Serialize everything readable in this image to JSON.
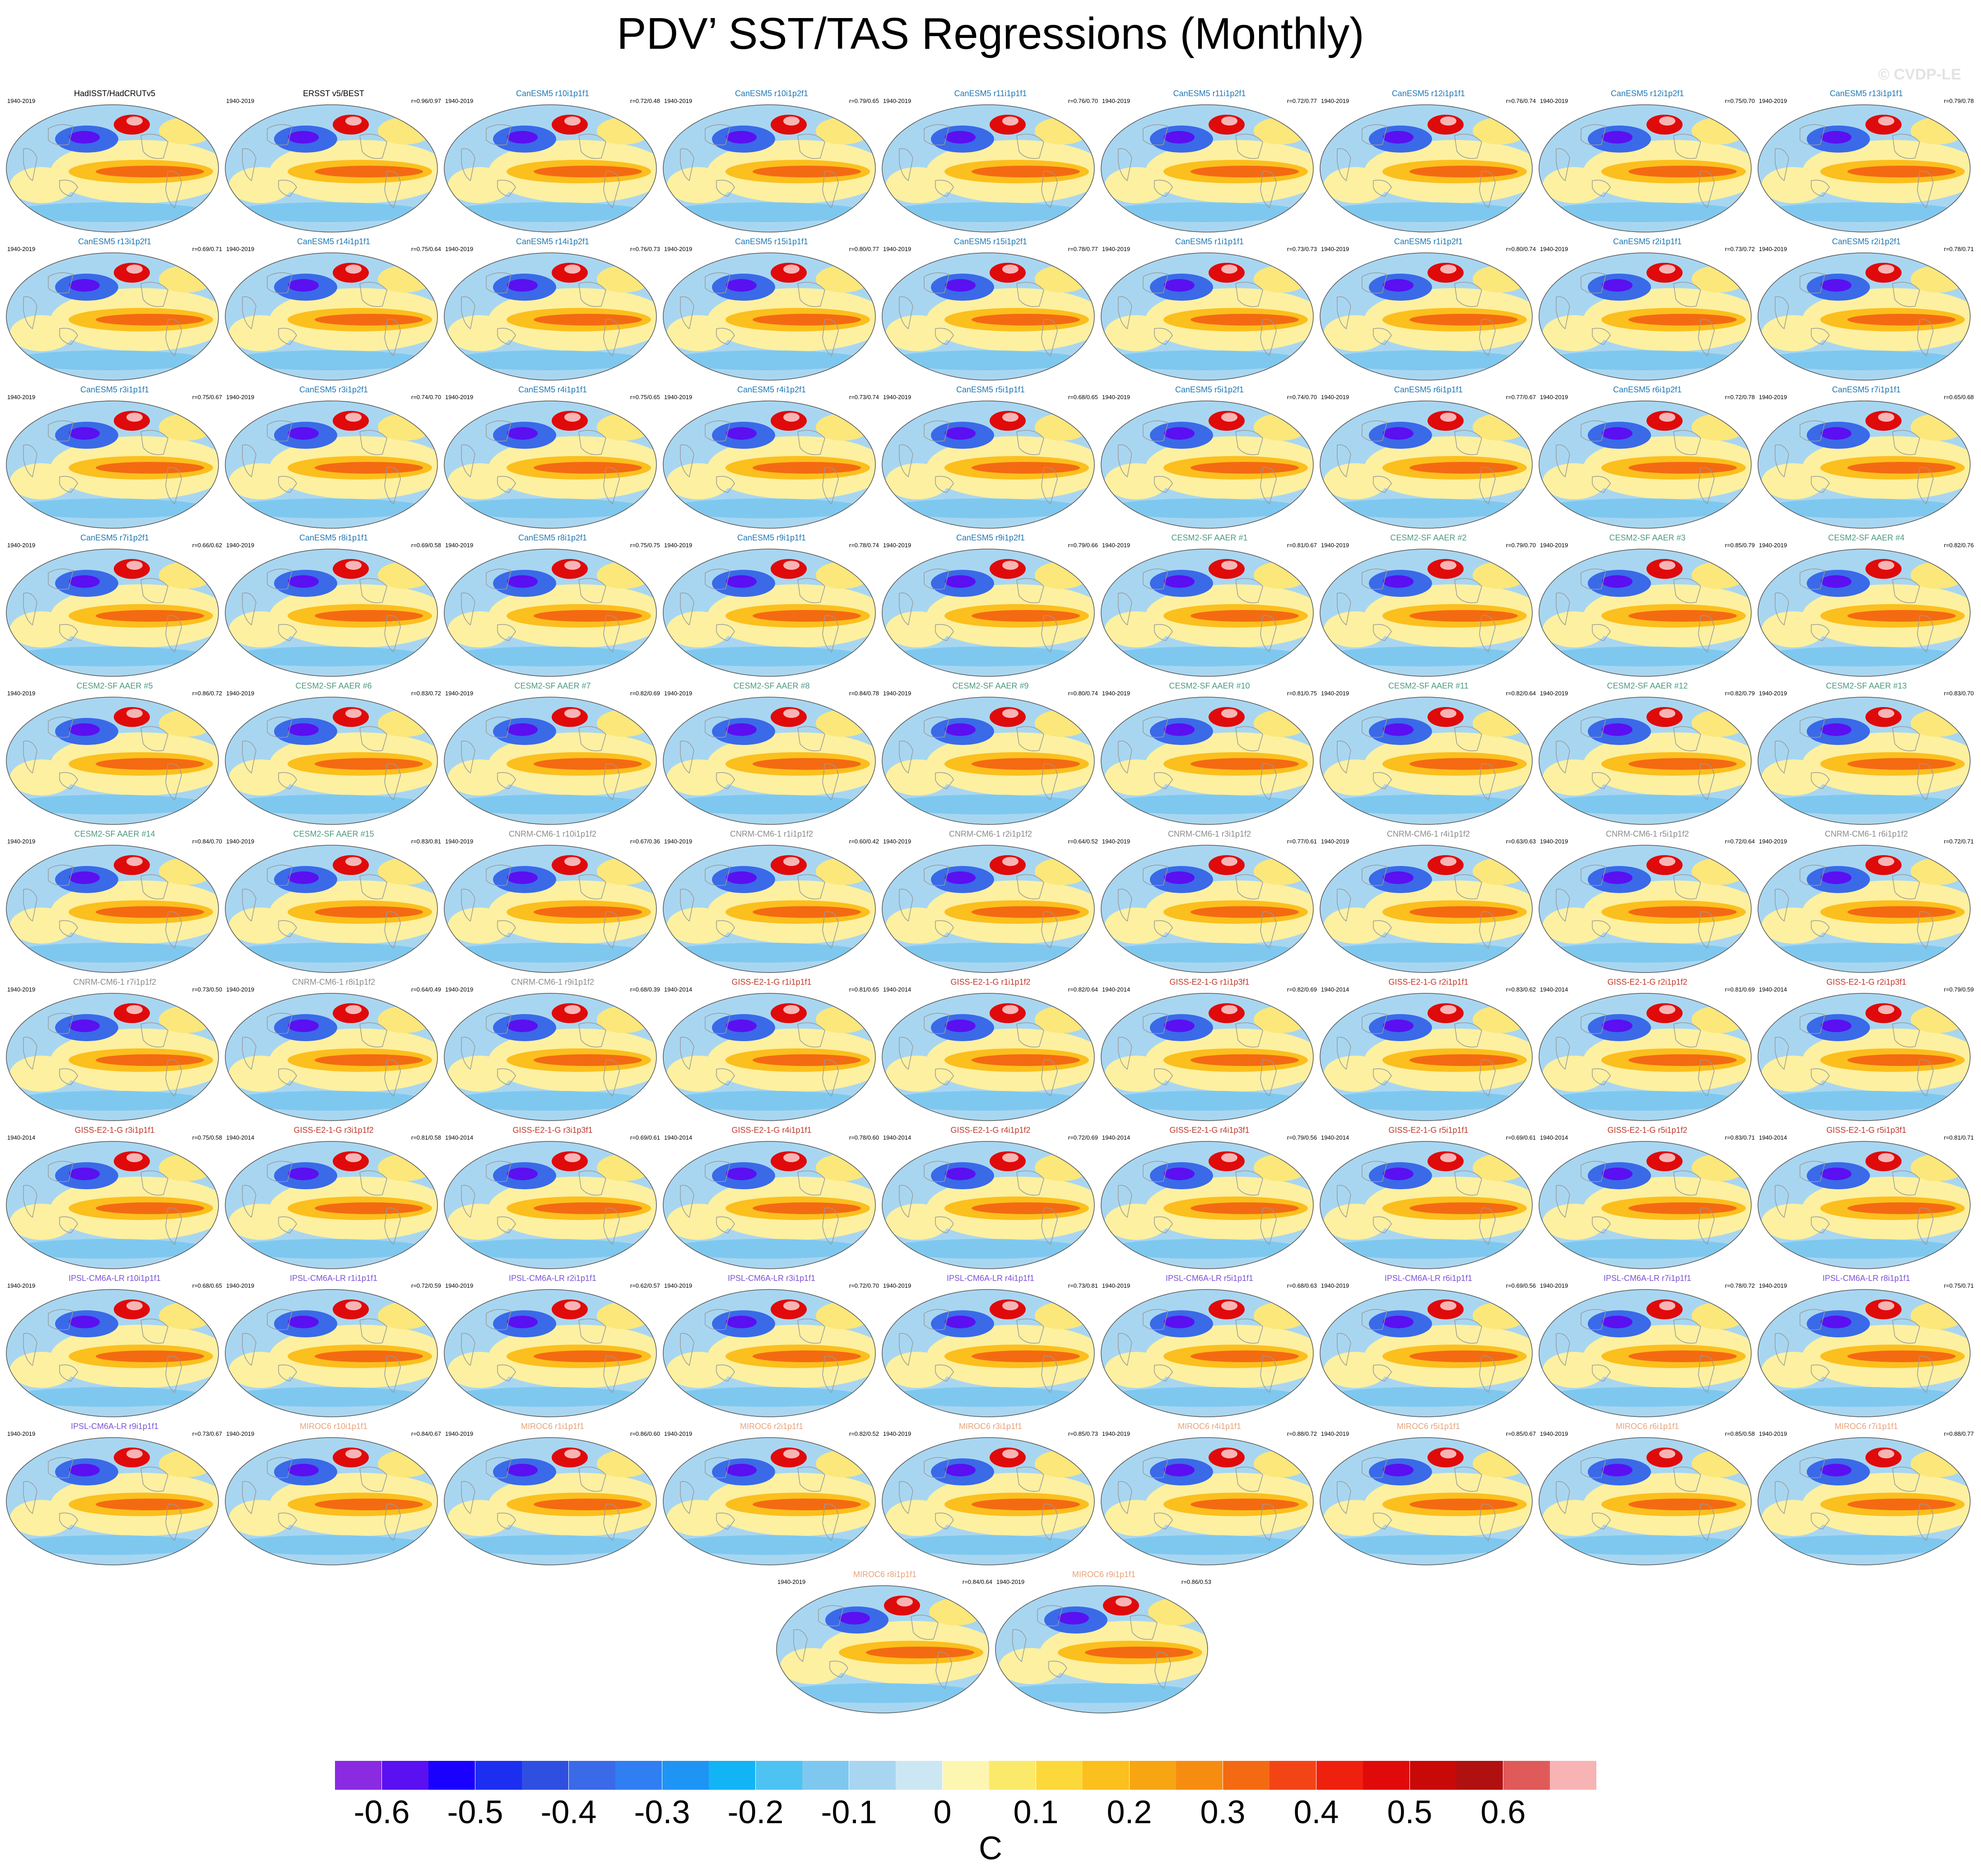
{
  "title": "PDV’ SST/TAS Regressions (Monthly)",
  "watermark": "© CVDP-LE",
  "chart_data": {
    "type": "heatmap",
    "description_units": "C",
    "colorbar": {
      "units": "C",
      "tick_labels": [
        "-0.6",
        "-0.5",
        "-0.4",
        "-0.3",
        "-0.2",
        "-0.1",
        "0",
        "0.1",
        "0.2",
        "0.3",
        "0.4",
        "0.5",
        "0.6"
      ],
      "tick_values": [
        -0.6,
        -0.5,
        -0.4,
        -0.3,
        -0.2,
        -0.1,
        0,
        0.1,
        0.2,
        0.3,
        0.4,
        0.5,
        0.6
      ],
      "colors": [
        "#8a2be2",
        "#5a10f0",
        "#1a00ff",
        "#1c2ef0",
        "#2f4fe0",
        "#3a6ae8",
        "#2f7ff2",
        "#1e95f5",
        "#12b4f5",
        "#4cc3f2",
        "#7ec8ef",
        "#a8d6f1",
        "#cce7f4",
        "#fdf6b0",
        "#fbe96a",
        "#fcd83a",
        "#fbbf1e",
        "#f8a514",
        "#f78d10",
        "#f46a12",
        "#f34415",
        "#f0200f",
        "#e00a0a",
        "#c90808",
        "#b01010",
        "#e05a5a",
        "#f8b4b4"
      ]
    },
    "panels": [
      {
        "title": "HadISST/HadCRUTv5",
        "years": "1940-2019",
        "corr": "",
        "group": "obs"
      },
      {
        "title": "ERSST v5/BEST",
        "years": "1940-2019",
        "corr": "r=0.96/0.97",
        "group": "obs"
      },
      {
        "title": "CanESM5 r10i1p1f1",
        "years": "1940-2019",
        "corr": "r=0.72/0.48",
        "group": "canesm5"
      },
      {
        "title": "CanESM5 r10i1p2f1",
        "years": "1940-2019",
        "corr": "r=0.79/0.65",
        "group": "canesm5"
      },
      {
        "title": "CanESM5 r11i1p1f1",
        "years": "1940-2019",
        "corr": "r=0.76/0.70",
        "group": "canesm5"
      },
      {
        "title": "CanESM5 r11i1p2f1",
        "years": "1940-2019",
        "corr": "r=0.72/0.77",
        "group": "canesm5"
      },
      {
        "title": "CanESM5 r12i1p1f1",
        "years": "1940-2019",
        "corr": "r=0.76/0.74",
        "group": "canesm5"
      },
      {
        "title": "CanESM5 r12i1p2f1",
        "years": "1940-2019",
        "corr": "r=0.75/0.70",
        "group": "canesm5"
      },
      {
        "title": "CanESM5 r13i1p1f1",
        "years": "1940-2019",
        "corr": "r=0.79/0.78",
        "group": "canesm5"
      },
      {
        "title": "CanESM5 r13i1p2f1",
        "years": "1940-2019",
        "corr": "r=0.69/0.71",
        "group": "canesm5"
      },
      {
        "title": "CanESM5 r14i1p1f1",
        "years": "1940-2019",
        "corr": "r=0.75/0.64",
        "group": "canesm5"
      },
      {
        "title": "CanESM5 r14i1p2f1",
        "years": "1940-2019",
        "corr": "r=0.76/0.73",
        "group": "canesm5"
      },
      {
        "title": "CanESM5 r15i1p1f1",
        "years": "1940-2019",
        "corr": "r=0.80/0.77",
        "group": "canesm5"
      },
      {
        "title": "CanESM5 r15i1p2f1",
        "years": "1940-2019",
        "corr": "r=0.78/0.77",
        "group": "canesm5"
      },
      {
        "title": "CanESM5 r1i1p1f1",
        "years": "1940-2019",
        "corr": "r=0.73/0.73",
        "group": "canesm5"
      },
      {
        "title": "CanESM5 r1i1p2f1",
        "years": "1940-2019",
        "corr": "r=0.80/0.74",
        "group": "canesm5"
      },
      {
        "title": "CanESM5 r2i1p1f1",
        "years": "1940-2019",
        "corr": "r=0.73/0.72",
        "group": "canesm5"
      },
      {
        "title": "CanESM5 r2i1p2f1",
        "years": "1940-2019",
        "corr": "r=0.78/0.71",
        "group": "canesm5"
      },
      {
        "title": "CanESM5 r3i1p1f1",
        "years": "1940-2019",
        "corr": "r=0.75/0.67",
        "group": "canesm5"
      },
      {
        "title": "CanESM5 r3i1p2f1",
        "years": "1940-2019",
        "corr": "r=0.74/0.70",
        "group": "canesm5"
      },
      {
        "title": "CanESM5 r4i1p1f1",
        "years": "1940-2019",
        "corr": "r=0.75/0.65",
        "group": "canesm5"
      },
      {
        "title": "CanESM5 r4i1p2f1",
        "years": "1940-2019",
        "corr": "r=0.73/0.74",
        "group": "canesm5"
      },
      {
        "title": "CanESM5 r5i1p1f1",
        "years": "1940-2019",
        "corr": "r=0.68/0.65",
        "group": "canesm5"
      },
      {
        "title": "CanESM5 r5i1p2f1",
        "years": "1940-2019",
        "corr": "r=0.74/0.70",
        "group": "canesm5"
      },
      {
        "title": "CanESM5 r6i1p1f1",
        "years": "1940-2019",
        "corr": "r=0.77/0.67",
        "group": "canesm5"
      },
      {
        "title": "CanESM5 r6i1p2f1",
        "years": "1940-2019",
        "corr": "r=0.72/0.78",
        "group": "canesm5"
      },
      {
        "title": "CanESM5 r7i1p1f1",
        "years": "1940-2019",
        "corr": "r=0.65/0.68",
        "group": "canesm5"
      },
      {
        "title": "CanESM5 r7i1p2f1",
        "years": "1940-2019",
        "corr": "r=0.66/0.62",
        "group": "canesm5"
      },
      {
        "title": "CanESM5 r8i1p1f1",
        "years": "1940-2019",
        "corr": "r=0.69/0.58",
        "group": "canesm5"
      },
      {
        "title": "CanESM5 r8i1p2f1",
        "years": "1940-2019",
        "corr": "r=0.75/0.75",
        "group": "canesm5"
      },
      {
        "title": "CanESM5 r9i1p1f1",
        "years": "1940-2019",
        "corr": "r=0.78/0.74",
        "group": "canesm5"
      },
      {
        "title": "CanESM5 r9i1p2f1",
        "years": "1940-2019",
        "corr": "r=0.79/0.66",
        "group": "canesm5"
      },
      {
        "title": "CESM2-SF AAER #1",
        "years": "1940-2019",
        "corr": "r=0.81/0.67",
        "group": "cesm2"
      },
      {
        "title": "CESM2-SF AAER #2",
        "years": "1940-2019",
        "corr": "r=0.79/0.70",
        "group": "cesm2"
      },
      {
        "title": "CESM2-SF AAER #3",
        "years": "1940-2019",
        "corr": "r=0.85/0.79",
        "group": "cesm2"
      },
      {
        "title": "CESM2-SF AAER #4",
        "years": "1940-2019",
        "corr": "r=0.82/0.76",
        "group": "cesm2"
      },
      {
        "title": "CESM2-SF AAER #5",
        "years": "1940-2019",
        "corr": "r=0.86/0.72",
        "group": "cesm2"
      },
      {
        "title": "CESM2-SF AAER #6",
        "years": "1940-2019",
        "corr": "r=0.83/0.72",
        "group": "cesm2"
      },
      {
        "title": "CESM2-SF AAER #7",
        "years": "1940-2019",
        "corr": "r=0.82/0.69",
        "group": "cesm2"
      },
      {
        "title": "CESM2-SF AAER #8",
        "years": "1940-2019",
        "corr": "r=0.84/0.78",
        "group": "cesm2"
      },
      {
        "title": "CESM2-SF AAER #9",
        "years": "1940-2019",
        "corr": "r=0.80/0.74",
        "group": "cesm2"
      },
      {
        "title": "CESM2-SF AAER #10",
        "years": "1940-2019",
        "corr": "r=0.81/0.75",
        "group": "cesm2"
      },
      {
        "title": "CESM2-SF AAER #11",
        "years": "1940-2019",
        "corr": "r=0.82/0.64",
        "group": "cesm2"
      },
      {
        "title": "CESM2-SF AAER #12",
        "years": "1940-2019",
        "corr": "r=0.82/0.79",
        "group": "cesm2"
      },
      {
        "title": "CESM2-SF AAER #13",
        "years": "1940-2019",
        "corr": "r=0.83/0.70",
        "group": "cesm2"
      },
      {
        "title": "CESM2-SF AAER #14",
        "years": "1940-2019",
        "corr": "r=0.84/0.70",
        "group": "cesm2"
      },
      {
        "title": "CESM2-SF AAER #15",
        "years": "1940-2019",
        "corr": "r=0.83/0.81",
        "group": "cesm2"
      },
      {
        "title": "CNRM-CM6-1 r10i1p1f2",
        "years": "1940-2019",
        "corr": "r=0.67/0.36",
        "group": "cnrm"
      },
      {
        "title": "CNRM-CM6-1 r1i1p1f2",
        "years": "1940-2019",
        "corr": "r=0.60/0.42",
        "group": "cnrm"
      },
      {
        "title": "CNRM-CM6-1 r2i1p1f2",
        "years": "1940-2019",
        "corr": "r=0.64/0.52",
        "group": "cnrm"
      },
      {
        "title": "CNRM-CM6-1 r3i1p1f2",
        "years": "1940-2019",
        "corr": "r=0.77/0.61",
        "group": "cnrm"
      },
      {
        "title": "CNRM-CM6-1 r4i1p1f2",
        "years": "1940-2019",
        "corr": "r=0.63/0.63",
        "group": "cnrm"
      },
      {
        "title": "CNRM-CM6-1 r5i1p1f2",
        "years": "1940-2019",
        "corr": "r=0.72/0.64",
        "group": "cnrm"
      },
      {
        "title": "CNRM-CM6-1 r6i1p1f2",
        "years": "1940-2019",
        "corr": "r=0.72/0.71",
        "group": "cnrm"
      },
      {
        "title": "CNRM-CM6-1 r7i1p1f2",
        "years": "1940-2019",
        "corr": "r=0.73/0.50",
        "group": "cnrm"
      },
      {
        "title": "CNRM-CM6-1 r8i1p1f2",
        "years": "1940-2019",
        "corr": "r=0.64/0.49",
        "group": "cnrm"
      },
      {
        "title": "CNRM-CM6-1 r9i1p1f2",
        "years": "1940-2019",
        "corr": "r=0.68/0.39",
        "group": "cnrm"
      },
      {
        "title": "GISS-E2-1-G r1i1p1f1",
        "years": "1940-2014",
        "corr": "r=0.81/0.65",
        "group": "giss"
      },
      {
        "title": "GISS-E2-1-G r1i1p1f2",
        "years": "1940-2014",
        "corr": "r=0.82/0.64",
        "group": "giss"
      },
      {
        "title": "GISS-E2-1-G r1i1p3f1",
        "years": "1940-2014",
        "corr": "r=0.82/0.69",
        "group": "giss"
      },
      {
        "title": "GISS-E2-1-G r2i1p1f1",
        "years": "1940-2014",
        "corr": "r=0.83/0.62",
        "group": "giss"
      },
      {
        "title": "GISS-E2-1-G r2i1p1f2",
        "years": "1940-2014",
        "corr": "r=0.81/0.69",
        "group": "giss"
      },
      {
        "title": "GISS-E2-1-G r2i1p3f1",
        "years": "1940-2014",
        "corr": "r=0.79/0.59",
        "group": "giss"
      },
      {
        "title": "GISS-E2-1-G r3i1p1f1",
        "years": "1940-2014",
        "corr": "r=0.75/0.58",
        "group": "giss"
      },
      {
        "title": "GISS-E2-1-G r3i1p1f2",
        "years": "1940-2014",
        "corr": "r=0.81/0.58",
        "group": "giss"
      },
      {
        "title": "GISS-E2-1-G r3i1p3f1",
        "years": "1940-2014",
        "corr": "r=0.69/0.61",
        "group": "giss"
      },
      {
        "title": "GISS-E2-1-G r4i1p1f1",
        "years": "1940-2014",
        "corr": "r=0.78/0.60",
        "group": "giss"
      },
      {
        "title": "GISS-E2-1-G r4i1p1f2",
        "years": "1940-2014",
        "corr": "r=0.72/0.69",
        "group": "giss"
      },
      {
        "title": "GISS-E2-1-G r4i1p3f1",
        "years": "1940-2014",
        "corr": "r=0.79/0.56",
        "group": "giss"
      },
      {
        "title": "GISS-E2-1-G r5i1p1f1",
        "years": "1940-2014",
        "corr": "r=0.69/0.61",
        "group": "giss"
      },
      {
        "title": "GISS-E2-1-G r5i1p1f2",
        "years": "1940-2014",
        "corr": "r=0.83/0.71",
        "group": "giss"
      },
      {
        "title": "GISS-E2-1-G r5i1p3f1",
        "years": "1940-2014",
        "corr": "r=0.81/0.71",
        "group": "giss"
      },
      {
        "title": "IPSL-CM6A-LR r10i1p1f1",
        "years": "1940-2019",
        "corr": "r=0.68/0.65",
        "group": "ipsl"
      },
      {
        "title": "IPSL-CM6A-LR r1i1p1f1",
        "years": "1940-2019",
        "corr": "r=0.72/0.59",
        "group": "ipsl"
      },
      {
        "title": "IPSL-CM6A-LR r2i1p1f1",
        "years": "1940-2019",
        "corr": "r=0.62/0.57",
        "group": "ipsl"
      },
      {
        "title": "IPSL-CM6A-LR r3i1p1f1",
        "years": "1940-2019",
        "corr": "r=0.72/0.70",
        "group": "ipsl"
      },
      {
        "title": "IPSL-CM6A-LR r4i1p1f1",
        "years": "1940-2019",
        "corr": "r=0.73/0.81",
        "group": "ipsl"
      },
      {
        "title": "IPSL-CM6A-LR r5i1p1f1",
        "years": "1940-2019",
        "corr": "r=0.68/0.63",
        "group": "ipsl"
      },
      {
        "title": "IPSL-CM6A-LR r6i1p1f1",
        "years": "1940-2019",
        "corr": "r=0.69/0.56",
        "group": "ipsl"
      },
      {
        "title": "IPSL-CM6A-LR r7i1p1f1",
        "years": "1940-2019",
        "corr": "r=0.78/0.72",
        "group": "ipsl"
      },
      {
        "title": "IPSL-CM6A-LR r8i1p1f1",
        "years": "1940-2019",
        "corr": "r=0.75/0.71",
        "group": "ipsl"
      },
      {
        "title": "IPSL-CM6A-LR r9i1p1f1",
        "years": "1940-2019",
        "corr": "r=0.73/0.67",
        "group": "ipsl"
      },
      {
        "title": "MIROC6 r10i1p1f1",
        "years": "1940-2019",
        "corr": "r=0.84/0.67",
        "group": "miroc"
      },
      {
        "title": "MIROC6 r1i1p1f1",
        "years": "1940-2019",
        "corr": "r=0.86/0.60",
        "group": "miroc"
      },
      {
        "title": "MIROC6 r2i1p1f1",
        "years": "1940-2019",
        "corr": "r=0.82/0.52",
        "group": "miroc"
      },
      {
        "title": "MIROC6 r3i1p1f1",
        "years": "1940-2019",
        "corr": "r=0.85/0.73",
        "group": "miroc"
      },
      {
        "title": "MIROC6 r4i1p1f1",
        "years": "1940-2019",
        "corr": "r=0.88/0.72",
        "group": "miroc"
      },
      {
        "title": "MIROC6 r5i1p1f1",
        "years": "1940-2019",
        "corr": "r=0.85/0.67",
        "group": "miroc"
      },
      {
        "title": "MIROC6 r6i1p1f1",
        "years": "1940-2019",
        "corr": "r=0.85/0.58",
        "group": "miroc"
      },
      {
        "title": "MIROC6 r7i1p1f1",
        "years": "1940-2019",
        "corr": "r=0.88/0.77",
        "group": "miroc"
      },
      {
        "title": "MIROC6 r8i1p1f1",
        "years": "1940-2019",
        "corr": "r=0.84/0.64",
        "group": "miroc"
      },
      {
        "title": "MIROC6 r9i1p1f1",
        "years": "1940-2019",
        "corr": "r=0.86/0.53",
        "group": "miroc"
      }
    ]
  },
  "group_colors": {
    "obs": "#000000",
    "canesm5": "#1f78b4",
    "cesm2": "#4e9a80",
    "cnrm": "#8c8c8c",
    "giss": "#c0392b",
    "ipsl": "#7b52d6",
    "miroc": "#e8a27a"
  }
}
